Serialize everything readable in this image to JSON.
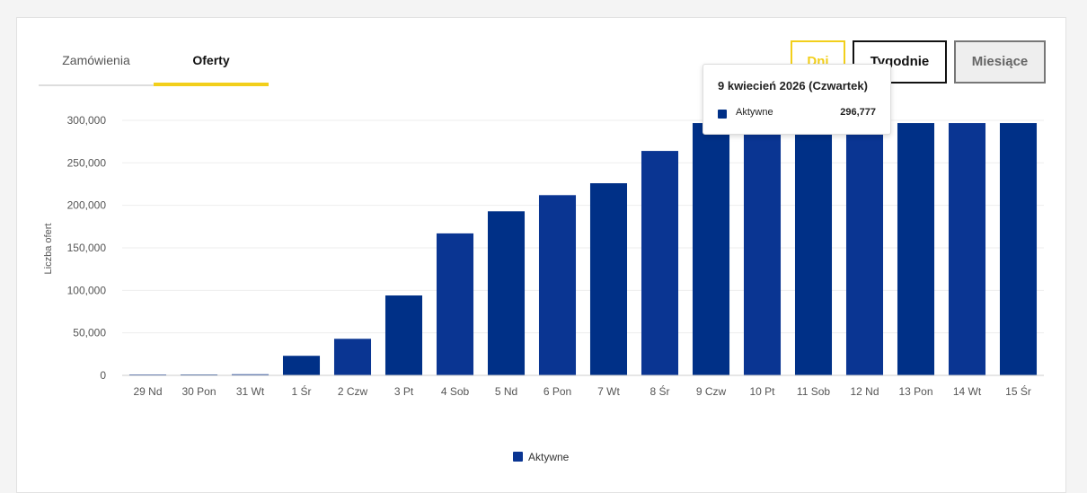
{
  "tabs": [
    {
      "label": "Zamówienia",
      "active": false
    },
    {
      "label": "Oferty",
      "active": true
    }
  ],
  "period_buttons": {
    "days": "Dni",
    "weeks": "Tygodnie",
    "months": "Miesiące",
    "selected": "days"
  },
  "colors": {
    "accent": "#f2cf1b",
    "bar": "#0a3592",
    "bar_highlight": "#003087"
  },
  "tooltip": {
    "title": "9 kwiecień 2026 (Czwartek)",
    "series": "Aktywne",
    "value": "296,777"
  },
  "chart_data": {
    "type": "bar",
    "ylabel": "Liczba ofert",
    "xlabel": "",
    "ylim": [
      0,
      300000
    ],
    "yticks": [
      0,
      50000,
      100000,
      150000,
      200000,
      250000,
      300000
    ],
    "ytick_labels": [
      "0",
      "50,000",
      "100,000",
      "150,000",
      "200,000",
      "250,000",
      "300,000"
    ],
    "grid": true,
    "legend": "bottom-center",
    "categories": [
      "29 Nd",
      "30 Pon",
      "31 Wt",
      "1 Śr",
      "2 Czw",
      "3 Pt",
      "4 Sob",
      "5 Nd",
      "6 Pon",
      "7 Wt",
      "8 Śr",
      "9 Czw",
      "10 Pt",
      "11 Sob",
      "12 Nd",
      "13 Pon",
      "14 Wt",
      "15 Śr"
    ],
    "series": [
      {
        "name": "Aktywne",
        "values": [
          600,
          700,
          1300,
          23000,
          43000,
          94000,
          167000,
          193000,
          212000,
          226000,
          264000,
          296777,
          296777,
          296777,
          296777,
          296777,
          296777,
          296777
        ]
      }
    ]
  }
}
